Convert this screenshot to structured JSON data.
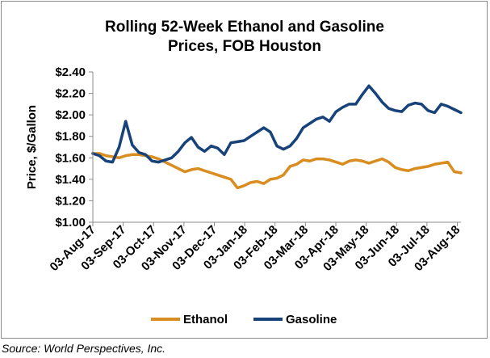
{
  "source": "Source: World Perspectives, Inc.",
  "chart_data": {
    "type": "line",
    "title_lines": [
      "Rolling 52-Week Ethanol and Gasoline",
      "Prices, FOB Houston"
    ],
    "ylabel": "Price, $/Gallon",
    "xlabel": "",
    "ylim": [
      1.0,
      2.4
    ],
    "yticks": [
      "$1.00",
      "$1.20",
      "$1.40",
      "$1.60",
      "$1.80",
      "$2.00",
      "$2.20",
      "$2.40"
    ],
    "ytick_values": [
      1.0,
      1.2,
      1.4,
      1.6,
      1.8,
      2.0,
      2.2,
      2.4
    ],
    "x_labels": [
      "03-Aug-17",
      "03-Sep-17",
      "03-Oct-17",
      "03-Nov-17",
      "03-Dec-17",
      "03-Jan-18",
      "03-Feb-18",
      "03-Mar-18",
      "03-Apr-18",
      "03-May-18",
      "03-Jun-18",
      "03-Jul-18",
      "03-Aug-18"
    ],
    "x_range_weeks": [
      0,
      56
    ],
    "grid": false,
    "legend_position": "bottom",
    "series": [
      {
        "name": "Ethanol",
        "color": "#d98c1f",
        "values": [
          1.64,
          1.64,
          1.62,
          1.61,
          1.6,
          1.62,
          1.63,
          1.63,
          1.62,
          1.61,
          1.59,
          1.56,
          1.53,
          1.5,
          1.47,
          1.49,
          1.5,
          1.48,
          1.46,
          1.44,
          1.42,
          1.4,
          1.32,
          1.34,
          1.37,
          1.38,
          1.36,
          1.4,
          1.41,
          1.44,
          1.52,
          1.54,
          1.58,
          1.57,
          1.59,
          1.59,
          1.58,
          1.56,
          1.54,
          1.57,
          1.58,
          1.57,
          1.55,
          1.57,
          1.59,
          1.56,
          1.51,
          1.49,
          1.48,
          1.5,
          1.51,
          1.52,
          1.54,
          1.55,
          1.56,
          1.47,
          1.46
        ]
      },
      {
        "name": "Gasoline",
        "color": "#17427a",
        "values": [
          1.64,
          1.62,
          1.57,
          1.56,
          1.7,
          1.94,
          1.72,
          1.65,
          1.63,
          1.57,
          1.56,
          1.58,
          1.6,
          1.66,
          1.74,
          1.79,
          1.7,
          1.66,
          1.71,
          1.69,
          1.63,
          1.74,
          1.75,
          1.76,
          1.8,
          1.84,
          1.88,
          1.84,
          1.71,
          1.68,
          1.71,
          1.78,
          1.88,
          1.92,
          1.96,
          1.98,
          1.94,
          2.03,
          2.07,
          2.1,
          2.1,
          2.19,
          2.27,
          2.2,
          2.12,
          2.06,
          2.04,
          2.03,
          2.09,
          2.11,
          2.1,
          2.04,
          2.02,
          2.1,
          2.08,
          2.05,
          2.02
        ]
      }
    ]
  }
}
